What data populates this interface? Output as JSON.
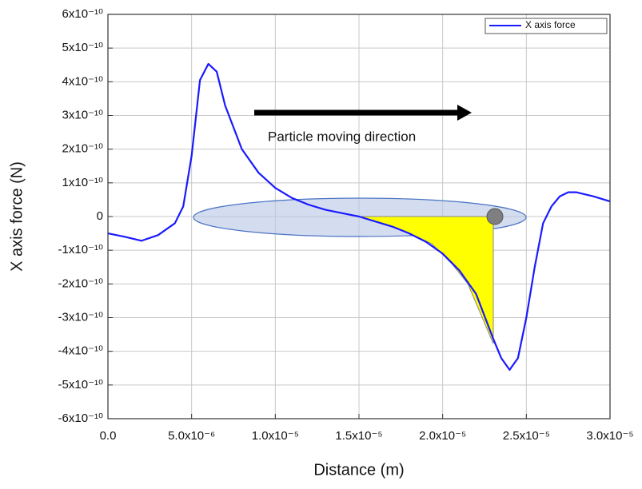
{
  "chart_data": {
    "type": "line",
    "x_label": "Distance (m)",
    "y_label": "X axis force (N)",
    "annotation": "Particle moving direction",
    "x": [
      0,
      1e-06,
      2e-06,
      3e-06,
      4e-06,
      4.5e-06,
      5e-06,
      5.5e-06,
      6e-06,
      6.5e-06,
      7e-06,
      8e-06,
      9e-06,
      1e-05,
      1.1e-05,
      1.2e-05,
      1.3e-05,
      1.4e-05,
      1.5e-05,
      1.6e-05,
      1.7e-05,
      1.8e-05,
      1.9e-05,
      2e-05,
      2.1e-05,
      2.2e-05,
      2.3e-05,
      2.35e-05,
      2.4e-05,
      2.45e-05,
      2.5e-05,
      2.55e-05,
      2.6e-05,
      2.65e-05,
      2.7e-05,
      2.75e-05,
      2.8e-05,
      2.9e-05,
      3e-05
    ],
    "series": [
      {
        "name": "X axis force",
        "color": "#1a1aff",
        "values": [
          -5e-11,
          -6e-11,
          -7.2e-11,
          -5.5e-11,
          -2e-11,
          3e-11,
          1.8e-10,
          4.05e-10,
          4.53e-10,
          4.3e-10,
          3.3e-10,
          2e-10,
          1.3e-10,
          8.5e-11,
          5.5e-11,
          3.5e-11,
          2e-11,
          1e-11,
          0,
          -1.5e-11,
          -3e-11,
          -5e-11,
          -7.5e-11,
          -1.1e-10,
          -1.6e-10,
          -2.3e-10,
          -3.6e-10,
          -4.2e-10,
          -4.55e-10,
          -4.2e-10,
          -3e-10,
          -1.5e-10,
          -2e-11,
          3e-11,
          6e-11,
          7.2e-11,
          7.2e-11,
          6e-11,
          4.5e-11
        ]
      }
    ],
    "xlim": [
      0,
      3e-05
    ],
    "xticks": [
      {
        "value": 0,
        "label": "0.0"
      },
      {
        "value": 5e-06,
        "label": "5.0x10⁻⁶"
      },
      {
        "value": 1e-05,
        "label": "1.0x10⁻⁵"
      },
      {
        "value": 1.5e-05,
        "label": "1.5x10⁻⁵"
      },
      {
        "value": 2e-05,
        "label": "2.0x10⁻⁵"
      },
      {
        "value": 2.5e-05,
        "label": "2.5x10⁻⁵"
      },
      {
        "value": 3e-05,
        "label": "3.0x10⁻⁵"
      }
    ],
    "ylim": [
      -6e-10,
      6e-10
    ],
    "yticks": [
      {
        "value": -6e-10,
        "label": "-6x10⁻¹⁰"
      },
      {
        "value": -5e-10,
        "label": "-5x10⁻¹⁰"
      },
      {
        "value": -4e-10,
        "label": "-4x10⁻¹⁰"
      },
      {
        "value": -3e-10,
        "label": "-3x10⁻¹⁰"
      },
      {
        "value": -2e-10,
        "label": "-2x10⁻¹⁰"
      },
      {
        "value": -1e-10,
        "label": "-1x10⁻¹⁰"
      },
      0,
      {
        "value": 1e-10,
        "label": "1x10⁻¹⁰"
      },
      {
        "value": 2e-10,
        "label": "2x10⁻¹⁰"
      },
      {
        "value": 3e-10,
        "label": "3x10⁻¹⁰"
      },
      {
        "value": 4e-10,
        "label": "4x10⁻¹⁰"
      },
      {
        "value": 5e-10,
        "label": "5x10⁻¹⁰"
      },
      {
        "value": 6e-10,
        "label": "6x10⁻¹⁰"
      }
    ],
    "grid": true,
    "legend": "upper right"
  }
}
